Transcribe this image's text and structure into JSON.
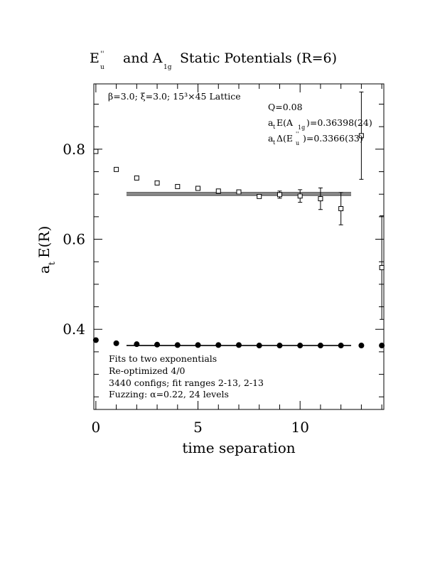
{
  "title": {
    "part1_main": "E",
    "part1_sup": "''",
    "part1_sub": "u",
    "part2": "and A",
    "part2_sub": "1g",
    "part3": "Static Potentials (R=6)"
  },
  "annotations": {
    "lattice": "β=3.0; ξ=3.0; 15³×45 Lattice",
    "q": "Q=0.08",
    "energy_a1g_prefix": "a",
    "energy_a1g_t": "t",
    "energy_a1g_mid": "E(A",
    "energy_a1g_sub": "1g",
    "energy_a1g_val": ")=0.36398(24)",
    "delta_prefix": "a",
    "delta_t": "t",
    "delta_mid": "Δ(E",
    "delta_sup": "''",
    "delta_sub": "u",
    "delta_val": ")=0.3366(33)",
    "fit_info": [
      "Fits to two exponentials",
      "Re-optimized 4/0",
      "3440 configs; fit ranges 2-13, 2-13",
      "Fuzzing: α=0.22, 24 levels"
    ]
  },
  "chart_data": {
    "type": "scatter",
    "xlabel": "time separation",
    "ylabel_main": "a",
    "ylabel_sub": "t",
    "ylabel_rest": "E(R)",
    "xlim": [
      -0.1,
      14.1
    ],
    "ylim": [
      0.222,
      0.945
    ],
    "x_ticks_labeled": [
      0,
      5,
      10
    ],
    "y_ticks_labeled": [
      "0.4",
      "0.6",
      "0.8"
    ],
    "y_tick_values": [
      0.4,
      0.6,
      0.8
    ],
    "series": [
      {
        "marker": "open-square",
        "points": [
          {
            "x": 0,
            "y": 0.795,
            "err": 0
          },
          {
            "x": 1,
            "y": 0.755,
            "err": 0
          },
          {
            "x": 2,
            "y": 0.736,
            "err": 0
          },
          {
            "x": 3,
            "y": 0.725,
            "err": 0
          },
          {
            "x": 4,
            "y": 0.717,
            "err": 0.002
          },
          {
            "x": 5,
            "y": 0.713,
            "err": 0.002
          },
          {
            "x": 6,
            "y": 0.707,
            "err": 0.003
          },
          {
            "x": 7,
            "y": 0.705,
            "err": 0.003
          },
          {
            "x": 8,
            "y": 0.695,
            "err": 0.004
          },
          {
            "x": 9,
            "y": 0.699,
            "err": 0.008
          },
          {
            "x": 10,
            "y": 0.696,
            "err": 0.014
          },
          {
            "x": 11,
            "y": 0.69,
            "err": 0.024
          },
          {
            "x": 12,
            "y": 0.668,
            "err": 0.036
          },
          {
            "x": 13,
            "y": 0.83,
            "err": 0.097
          },
          {
            "x": 14,
            "y": 0.537,
            "err": 0.115
          }
        ]
      },
      {
        "marker": "filled-circle",
        "points": [
          {
            "x": 0,
            "y": 0.376,
            "err": 0
          },
          {
            "x": 1,
            "y": 0.369,
            "err": 0
          },
          {
            "x": 2,
            "y": 0.367,
            "err": 0
          },
          {
            "x": 3,
            "y": 0.366,
            "err": 0
          },
          {
            "x": 4,
            "y": 0.365,
            "err": 0
          },
          {
            "x": 5,
            "y": 0.365,
            "err": 0
          },
          {
            "x": 6,
            "y": 0.365,
            "err": 0
          },
          {
            "x": 7,
            "y": 0.365,
            "err": 0
          },
          {
            "x": 8,
            "y": 0.364,
            "err": 0
          },
          {
            "x": 9,
            "y": 0.364,
            "err": 0
          },
          {
            "x": 10,
            "y": 0.364,
            "err": 0
          },
          {
            "x": 11,
            "y": 0.364,
            "err": 0
          },
          {
            "x": 12,
            "y": 0.364,
            "err": 0
          },
          {
            "x": 13,
            "y": 0.364,
            "err": 0
          },
          {
            "x": 14,
            "y": 0.364,
            "err": 0
          }
        ]
      }
    ],
    "fit_bands": [
      {
        "x_range": [
          1.5,
          12.5
        ],
        "center": 0.7006,
        "err": 0.0033
      },
      {
        "x_range": [
          1.5,
          12.5
        ],
        "center": 0.36398,
        "err": 0.00024
      }
    ]
  }
}
